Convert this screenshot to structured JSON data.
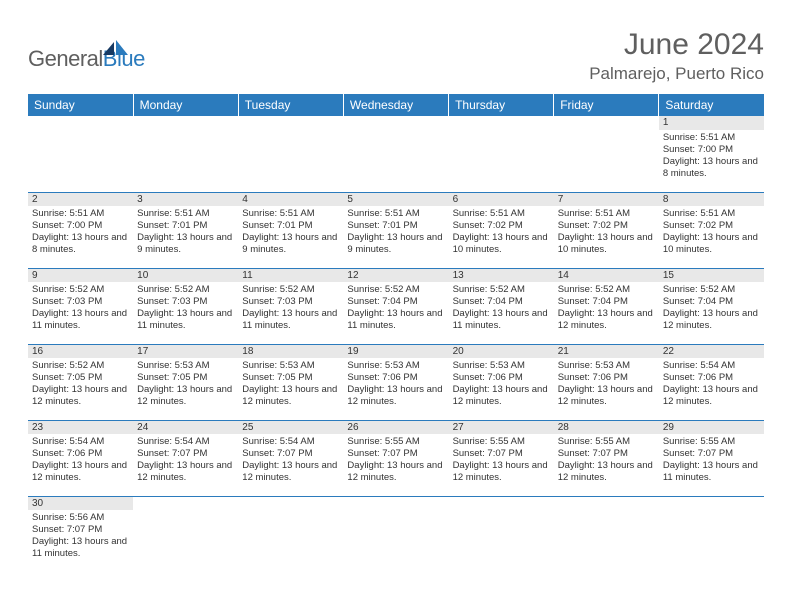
{
  "brand": {
    "word1": "General",
    "word2": "Blue"
  },
  "title": "June 2024",
  "location": "Palmarejo, Puerto Rico",
  "colors": {
    "header_bg": "#2b7bbd",
    "header_text": "#ffffff",
    "grid_line": "#2b7bbd",
    "daynum_bg": "#e8e8e8",
    "text": "#333333",
    "title_text": "#5f5f5f",
    "logo_blue": "#2b7bbd",
    "logo_gray": "#5f5f5f"
  },
  "weekdays": [
    "Sunday",
    "Monday",
    "Tuesday",
    "Wednesday",
    "Thursday",
    "Friday",
    "Saturday"
  ],
  "weeks": [
    [
      null,
      null,
      null,
      null,
      null,
      null,
      {
        "n": "1",
        "sunrise": "5:51 AM",
        "sunset": "7:00 PM",
        "daylight": "13 hours and 8 minutes."
      }
    ],
    [
      {
        "n": "2",
        "sunrise": "5:51 AM",
        "sunset": "7:00 PM",
        "daylight": "13 hours and 8 minutes."
      },
      {
        "n": "3",
        "sunrise": "5:51 AM",
        "sunset": "7:01 PM",
        "daylight": "13 hours and 9 minutes."
      },
      {
        "n": "4",
        "sunrise": "5:51 AM",
        "sunset": "7:01 PM",
        "daylight": "13 hours and 9 minutes."
      },
      {
        "n": "5",
        "sunrise": "5:51 AM",
        "sunset": "7:01 PM",
        "daylight": "13 hours and 9 minutes."
      },
      {
        "n": "6",
        "sunrise": "5:51 AM",
        "sunset": "7:02 PM",
        "daylight": "13 hours and 10 minutes."
      },
      {
        "n": "7",
        "sunrise": "5:51 AM",
        "sunset": "7:02 PM",
        "daylight": "13 hours and 10 minutes."
      },
      {
        "n": "8",
        "sunrise": "5:51 AM",
        "sunset": "7:02 PM",
        "daylight": "13 hours and 10 minutes."
      }
    ],
    [
      {
        "n": "9",
        "sunrise": "5:52 AM",
        "sunset": "7:03 PM",
        "daylight": "13 hours and 11 minutes."
      },
      {
        "n": "10",
        "sunrise": "5:52 AM",
        "sunset": "7:03 PM",
        "daylight": "13 hours and 11 minutes."
      },
      {
        "n": "11",
        "sunrise": "5:52 AM",
        "sunset": "7:03 PM",
        "daylight": "13 hours and 11 minutes."
      },
      {
        "n": "12",
        "sunrise": "5:52 AM",
        "sunset": "7:04 PM",
        "daylight": "13 hours and 11 minutes."
      },
      {
        "n": "13",
        "sunrise": "5:52 AM",
        "sunset": "7:04 PM",
        "daylight": "13 hours and 11 minutes."
      },
      {
        "n": "14",
        "sunrise": "5:52 AM",
        "sunset": "7:04 PM",
        "daylight": "13 hours and 12 minutes."
      },
      {
        "n": "15",
        "sunrise": "5:52 AM",
        "sunset": "7:04 PM",
        "daylight": "13 hours and 12 minutes."
      }
    ],
    [
      {
        "n": "16",
        "sunrise": "5:52 AM",
        "sunset": "7:05 PM",
        "daylight": "13 hours and 12 minutes."
      },
      {
        "n": "17",
        "sunrise": "5:53 AM",
        "sunset": "7:05 PM",
        "daylight": "13 hours and 12 minutes."
      },
      {
        "n": "18",
        "sunrise": "5:53 AM",
        "sunset": "7:05 PM",
        "daylight": "13 hours and 12 minutes."
      },
      {
        "n": "19",
        "sunrise": "5:53 AM",
        "sunset": "7:06 PM",
        "daylight": "13 hours and 12 minutes."
      },
      {
        "n": "20",
        "sunrise": "5:53 AM",
        "sunset": "7:06 PM",
        "daylight": "13 hours and 12 minutes."
      },
      {
        "n": "21",
        "sunrise": "5:53 AM",
        "sunset": "7:06 PM",
        "daylight": "13 hours and 12 minutes."
      },
      {
        "n": "22",
        "sunrise": "5:54 AM",
        "sunset": "7:06 PM",
        "daylight": "13 hours and 12 minutes."
      }
    ],
    [
      {
        "n": "23",
        "sunrise": "5:54 AM",
        "sunset": "7:06 PM",
        "daylight": "13 hours and 12 minutes."
      },
      {
        "n": "24",
        "sunrise": "5:54 AM",
        "sunset": "7:07 PM",
        "daylight": "13 hours and 12 minutes."
      },
      {
        "n": "25",
        "sunrise": "5:54 AM",
        "sunset": "7:07 PM",
        "daylight": "13 hours and 12 minutes."
      },
      {
        "n": "26",
        "sunrise": "5:55 AM",
        "sunset": "7:07 PM",
        "daylight": "13 hours and 12 minutes."
      },
      {
        "n": "27",
        "sunrise": "5:55 AM",
        "sunset": "7:07 PM",
        "daylight": "13 hours and 12 minutes."
      },
      {
        "n": "28",
        "sunrise": "5:55 AM",
        "sunset": "7:07 PM",
        "daylight": "13 hours and 12 minutes."
      },
      {
        "n": "29",
        "sunrise": "5:55 AM",
        "sunset": "7:07 PM",
        "daylight": "13 hours and 11 minutes."
      }
    ],
    [
      {
        "n": "30",
        "sunrise": "5:56 AM",
        "sunset": "7:07 PM",
        "daylight": "13 hours and 11 minutes."
      },
      null,
      null,
      null,
      null,
      null,
      null
    ]
  ],
  "labels": {
    "sunrise_prefix": "Sunrise: ",
    "sunset_prefix": "Sunset: ",
    "daylight_prefix": "Daylight: "
  }
}
